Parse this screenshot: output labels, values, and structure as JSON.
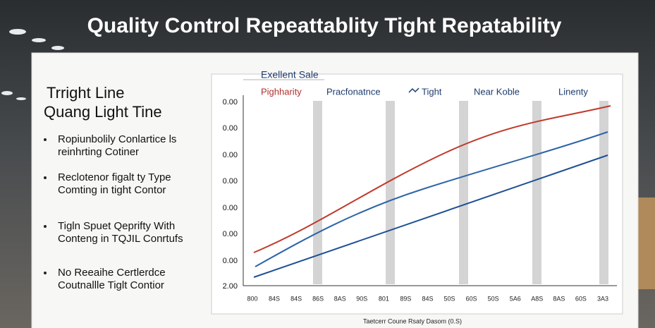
{
  "header": {
    "title": "Quality Control Repeattablity   Tight Repatability"
  },
  "left_panel": {
    "heading": [
      "Trright Line",
      "Quang Light Tine"
    ],
    "bullets": [
      [
        "Ropiunbolily Conlartice ls",
        "reinhrting Cotiner"
      ],
      [
        "Reclotenor figalt ty Type",
        "Comting in tight Contor"
      ],
      [
        "Tigln Spuet Qeprifty With",
        "Conteng in TQJIL Conrtufs"
      ],
      [
        "No Reeaihe Certlerdce",
        "Coutnallle  Tiglt Contior"
      ]
    ]
  },
  "chart": {
    "subtitle": "Exellent Sale",
    "legend": [
      "Pighharity",
      "Pracfonatnce",
      "Tight",
      "Near Koble",
      "Linenty"
    ],
    "y_labels": [
      "0.00",
      "0.00",
      "0.00",
      "0.00",
      "0.00",
      "0.00",
      "0.00",
      "2.00"
    ],
    "x_labels": [
      "800",
      "84S",
      "84S",
      "86S",
      "8AS",
      "90S",
      "801",
      "89S",
      "84S",
      "50S",
      "60S",
      "50S",
      "5A6",
      "A8S",
      "8AS",
      "60S",
      "3A3"
    ],
    "x_title": "Taetcerr Coune Rsaty Dasom (0.S)"
  }
}
